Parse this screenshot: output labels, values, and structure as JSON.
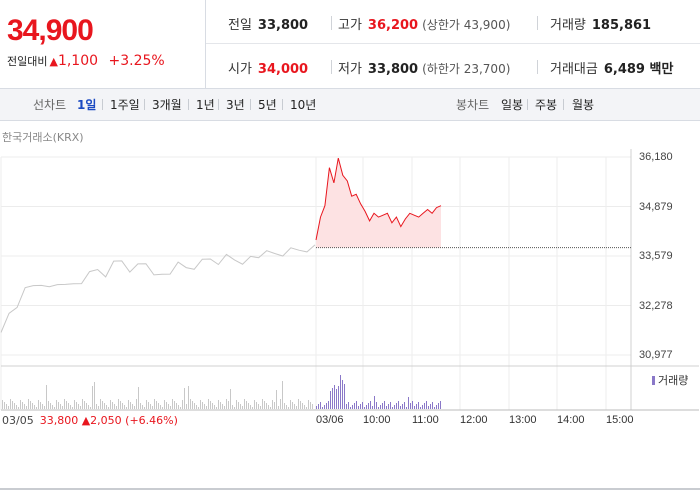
{
  "header": {
    "price": "34,900",
    "change_label": "전일대비",
    "change_arrow": "▲",
    "change_value": "1,100",
    "change_pct": "+3.25%"
  },
  "stats": {
    "prev": {
      "label": "전일",
      "value": "33,800"
    },
    "high": {
      "label": "고가",
      "value": "36,200",
      "sub": "(상한가 43,900)"
    },
    "volume": {
      "label": "거래량",
      "value": "185,861"
    },
    "open": {
      "label": "시가",
      "value": "34,000"
    },
    "low": {
      "label": "저가",
      "value": "33,800",
      "sub": "(하한가 23,700)"
    },
    "amount": {
      "label": "거래대금",
      "value": "6,489 백만"
    }
  },
  "tabs": {
    "line_label": "선차트",
    "line_items": [
      "1일",
      "1주일",
      "3개월",
      "1년",
      "3년",
      "5년",
      "10년"
    ],
    "active_index": 0,
    "candle_label": "봉차트",
    "candle_items": [
      "일봉",
      "주봉",
      "월봉"
    ]
  },
  "chart": {
    "exchange": "한국거래소(KRX)",
    "volume_legend": "거래량",
    "close_info": {
      "date": "03/05",
      "price": "33,800",
      "arrow": "▲",
      "change": "2,050",
      "pct": "(+6.46%)"
    }
  },
  "colors": {
    "up": "#e8161e",
    "prev_line": "#c8c8c8",
    "active_tab": "#1a49c2",
    "volume": "#8a78c8"
  },
  "chart_data": {
    "type": "line",
    "yticks": [
      "36,180",
      "34,879",
      "33,579",
      "32,278",
      "30,977"
    ],
    "ylim": [
      30977,
      36180
    ],
    "xticks": [
      "03/05",
      "03/06",
      "10:00",
      "11:00",
      "12:00",
      "13:00",
      "14:00",
      "15:00"
    ],
    "series": [
      {
        "values": [
          31450,
          32050,
          32300,
          32650,
          32800,
          32900,
          32700,
          32850,
          32950,
          32800,
          32900,
          33050,
          33200,
          33100,
          33350,
          33450,
          33250,
          33300,
          33400,
          33200,
          33050,
          33150,
          33300,
          33250,
          33300,
          33400,
          33500,
          33450,
          33550,
          33500,
          33480,
          33520,
          33580,
          33600,
          33620,
          33650,
          33700,
          33730,
          33780,
          33800
        ]
      },
      {
        "values": [
          34000,
          34600,
          34900,
          35900,
          35500,
          36150,
          35700,
          35550,
          35150,
          35200,
          34950,
          34750,
          34500,
          34700,
          34600,
          34650,
          34700,
          34450,
          34600,
          34350,
          34550,
          34700,
          34650,
          34600,
          34700,
          34800,
          34700,
          34850,
          34900
        ]
      }
    ],
    "prev_close": 33800
  }
}
